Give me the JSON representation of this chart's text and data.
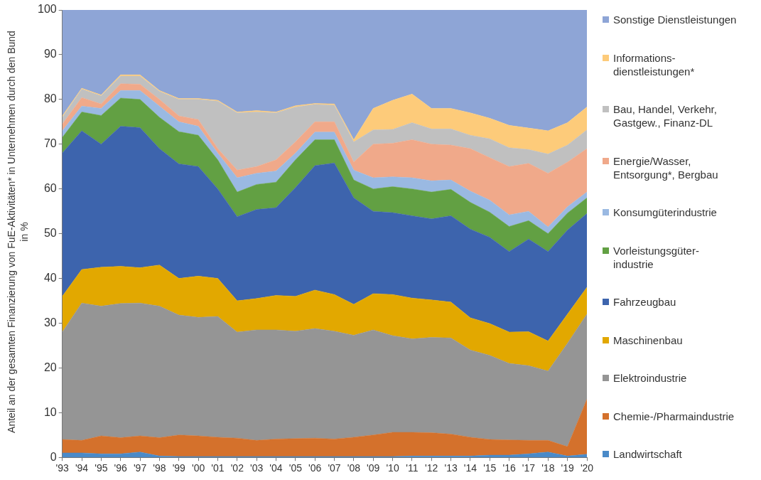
{
  "chart_data": {
    "type": "area",
    "stacked": true,
    "ylabel": "Anteil an der gesamten Finanzierung von FuE-Aktivitäten* in Unternehmen durch den Bund in %",
    "categories": [
      "'93",
      "'94",
      "'95",
      "'96",
      "'97",
      "'98",
      "'99",
      "'00",
      "'01",
      "'02",
      "'03",
      "'04",
      "'05",
      "'06",
      "'07",
      "'08",
      "'09",
      "'10",
      "'11",
      "'12",
      "'13",
      "'14",
      "'15",
      "'16",
      "'17",
      "'18",
      "'19",
      "'20"
    ],
    "ylim": [
      0,
      100
    ],
    "yticks": [
      0,
      10,
      20,
      30,
      40,
      50,
      60,
      70,
      80,
      90,
      100
    ],
    "grid": false,
    "legend": "right",
    "marker": "none",
    "series": [
      {
        "name": "Landwirtschaft",
        "color": "#4a8ac8",
        "values": [
          1,
          1,
          0.8,
          0.8,
          1.2,
          0.3,
          0.2,
          0.2,
          0.2,
          0.2,
          0.2,
          0.2,
          0.2,
          0.2,
          0.2,
          0.2,
          0.2,
          0.2,
          0.3,
          0.3,
          0.3,
          0.3,
          0.5,
          0.5,
          0.8,
          1.2,
          0.3,
          0.7
        ]
      },
      {
        "name": "Chemie-/Pharmaindustrie",
        "color": "#d4712c",
        "values": [
          3,
          2.8,
          4.0,
          3.6,
          3.6,
          4.1,
          4.8,
          4.6,
          4.3,
          4.1,
          3.6,
          3.9,
          4.0,
          4.1,
          3.9,
          4.3,
          4.8,
          5.4,
          5.3,
          5.2,
          4.9,
          4.2,
          3.5,
          3.4,
          3.0,
          2.6,
          2.1,
          12.3
        ]
      },
      {
        "name": "Elektroindustrie",
        "color": "#959595",
        "values": [
          24,
          30.7,
          29,
          30,
          29.7,
          29.4,
          26.8,
          26.5,
          27,
          23.7,
          24.7,
          24.4,
          24,
          24.5,
          24.1,
          22.8,
          23.5,
          21.6,
          20.9,
          21.3,
          21.5,
          19.5,
          18.8,
          17.1,
          16.7,
          15.5,
          23.1,
          19
        ]
      },
      {
        "name": "Maschinenbau",
        "color": "#e2a800",
        "values": [
          8,
          7.5,
          8.7,
          8.3,
          7.9,
          9.2,
          8.2,
          9.2,
          8.5,
          7,
          7,
          7.7,
          7.8,
          8.6,
          8.2,
          6.9,
          8.1,
          9.2,
          9.1,
          8.4,
          8,
          7.2,
          7.1,
          7,
          7.6,
          6.7,
          6.5,
          6
        ]
      },
      {
        "name": "Fahrzeugbau",
        "color": "#3d64ad",
        "values": [
          32,
          31,
          27.5,
          31.3,
          31.3,
          26,
          25.6,
          24.5,
          20,
          18.8,
          19.9,
          19.6,
          24.3,
          27.8,
          29.4,
          23.8,
          18.4,
          18.3,
          18.4,
          18.1,
          19.3,
          19.8,
          19.3,
          18,
          20.7,
          20,
          18.8,
          16.5
        ]
      },
      {
        "name": "Vorleistungsgüter-industrie",
        "color": "#62a043",
        "values": [
          3.5,
          4.2,
          6.4,
          6.3,
          6.3,
          7,
          7.2,
          7,
          6.5,
          5.5,
          5.6,
          5.7,
          6.2,
          5.8,
          5.2,
          4,
          5,
          5.8,
          6,
          6,
          5.9,
          6,
          5.6,
          5.6,
          4.1,
          4,
          3.8,
          3.5
        ]
      },
      {
        "name": "Konsumgüterindustrie",
        "color": "#9ab9e2",
        "values": [
          1.5,
          1.3,
          1.6,
          1.7,
          2,
          2.5,
          2.2,
          2,
          1.5,
          3.2,
          2.5,
          2.5,
          1.5,
          1.7,
          1.7,
          2.2,
          2.5,
          2.2,
          2.5,
          2.5,
          2.1,
          2.5,
          2.7,
          2.6,
          2.1,
          1.5,
          1.4,
          1.3
        ]
      },
      {
        "name": "Energie/Wasser, Entsorgung*, Bergbau",
        "color": "#f0a98a",
        "values": [
          1.5,
          1.9,
          1,
          1.5,
          1.4,
          1.5,
          1.3,
          1.5,
          1,
          1.7,
          1.5,
          2.5,
          2.5,
          2.3,
          2.3,
          1.8,
          7.5,
          7.5,
          8.5,
          8.2,
          7.8,
          9.5,
          9.5,
          10.8,
          10.7,
          12,
          10,
          9.7
        ]
      },
      {
        "name": "Bau, Handel, Verkehr, Gastgew., Finanz-DL",
        "color": "#c0c0c0",
        "values": [
          1.5,
          1.9,
          1.8,
          1.7,
          1.8,
          1.8,
          3.7,
          4.5,
          10.6,
          12.8,
          12.2,
          10.5,
          7.8,
          3.9,
          3.7,
          4.5,
          3.2,
          3.1,
          3.8,
          3.4,
          3.6,
          3,
          4.2,
          4.2,
          3.1,
          4.3,
          3.8,
          4.2
        ]
      },
      {
        "name": "Informations-dienstleistungen*",
        "color": "#fdcb7a",
        "values": [
          0.3,
          0.2,
          0.2,
          0.3,
          0.3,
          0.2,
          0.2,
          0.2,
          0.2,
          0.2,
          0.3,
          0.2,
          0.3,
          0.2,
          0.3,
          0.5,
          4.8,
          6.5,
          6.4,
          4.6,
          4.6,
          5,
          4.6,
          5,
          4.8,
          5.2,
          5,
          5.1
        ]
      },
      {
        "name": "Sonstige Dienstleistungen",
        "color": "#8ea5d6",
        "values": [
          23.7,
          17.5,
          19,
          14.5,
          14.5,
          18,
          19.8,
          19.8,
          20.2,
          22.8,
          22.5,
          22.8,
          21.4,
          20.9,
          21,
          29,
          22,
          20.2,
          18.8,
          22,
          22,
          23,
          24.2,
          25.8,
          26.4,
          27,
          25.2,
          21.7
        ]
      }
    ]
  }
}
